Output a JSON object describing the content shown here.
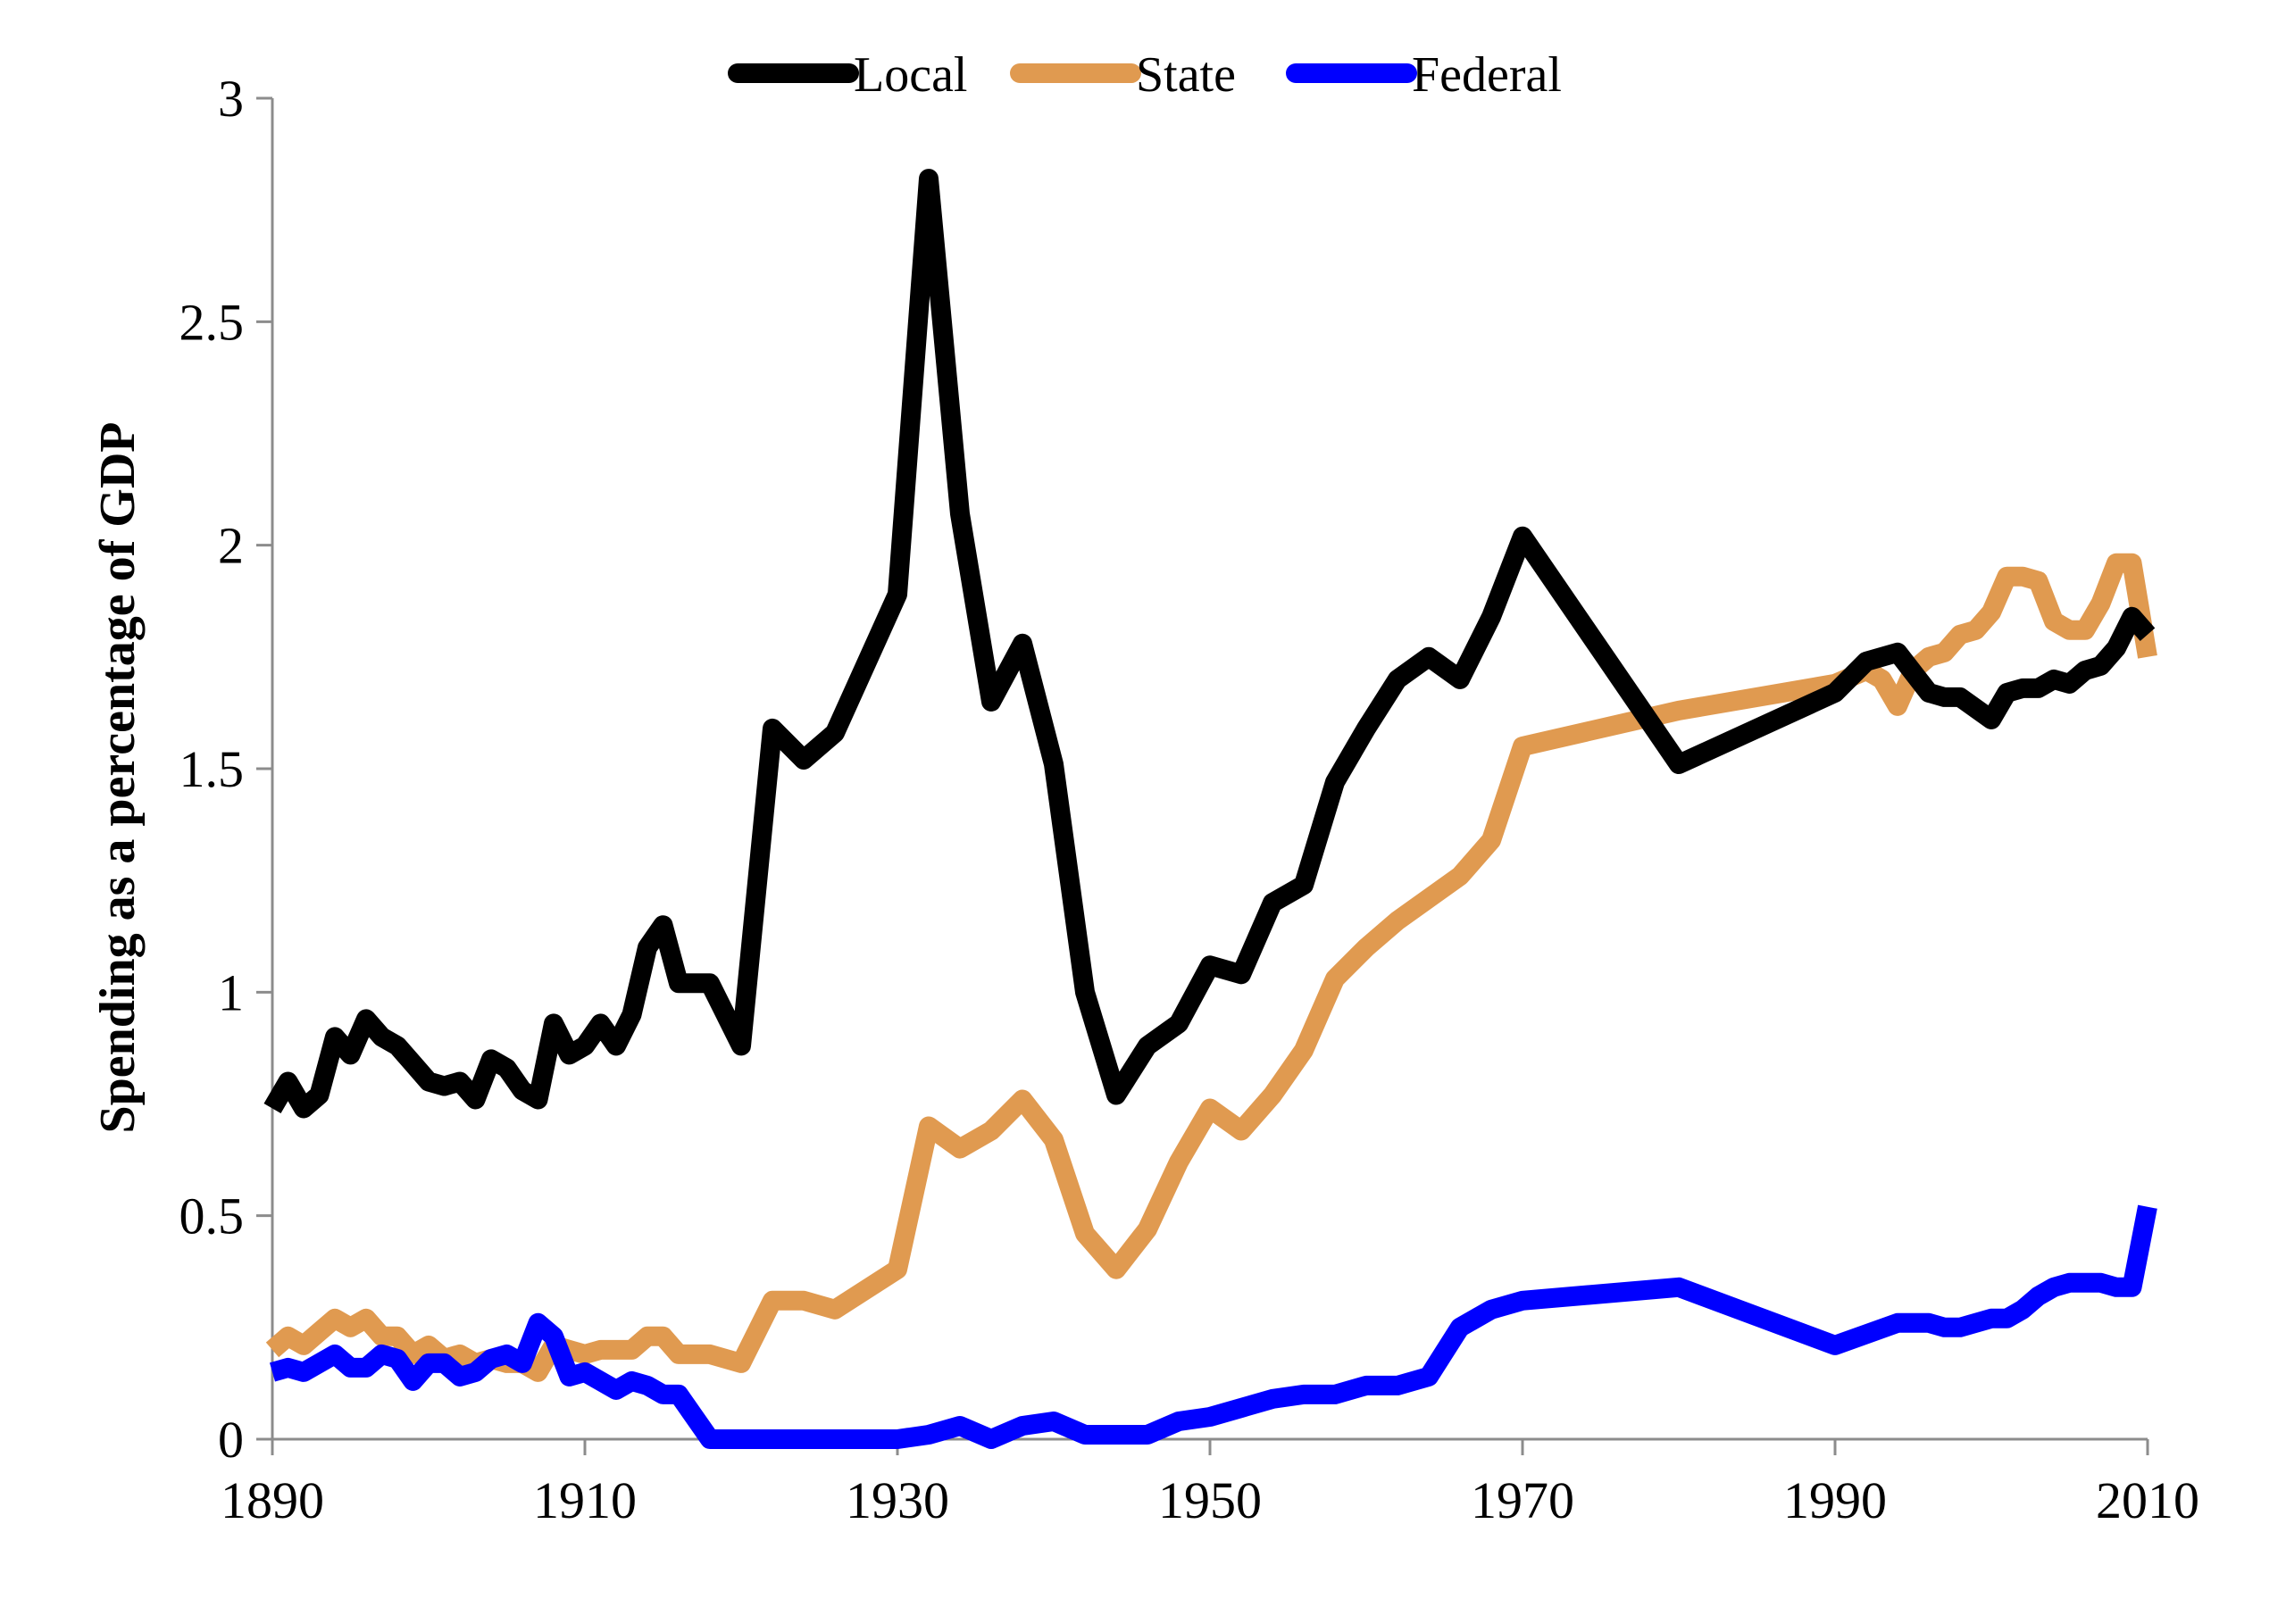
{
  "chart_data": {
    "type": "line",
    "title": "",
    "xlabel": "",
    "ylabel": "Spending as a percentage of GDP",
    "xlim": [
      1890,
      2010
    ],
    "ylim": [
      0,
      3
    ],
    "x_ticks": [
      "1890",
      "1910",
      "1930",
      "1950",
      "1970",
      "1990",
      "2010"
    ],
    "y_ticks": [
      "0",
      "0.5",
      "1",
      "1.5",
      "2",
      "2.5",
      "3"
    ],
    "grid": false,
    "legend_position": "top-center",
    "series": [
      {
        "name": "Local",
        "color": "#000000",
        "points": [
          [
            1890,
            0.74
          ],
          [
            1891,
            0.8
          ],
          [
            1892,
            0.74
          ],
          [
            1893,
            0.77
          ],
          [
            1894,
            0.9
          ],
          [
            1895,
            0.86
          ],
          [
            1896,
            0.94
          ],
          [
            1897,
            0.9
          ],
          [
            1898,
            0.88
          ],
          [
            1899,
            0.84
          ],
          [
            1900,
            0.8
          ],
          [
            1901,
            0.79
          ],
          [
            1902,
            0.8
          ],
          [
            1903,
            0.76
          ],
          [
            1904,
            0.85
          ],
          [
            1905,
            0.83
          ],
          [
            1906,
            0.78
          ],
          [
            1907,
            0.76
          ],
          [
            1908,
            0.93
          ],
          [
            1909,
            0.86
          ],
          [
            1910,
            0.88
          ],
          [
            1911,
            0.93
          ],
          [
            1912,
            0.88
          ],
          [
            1913,
            0.95
          ],
          [
            1914,
            1.1
          ],
          [
            1915,
            1.15
          ],
          [
            1916,
            1.02
          ],
          [
            1917,
            1.02
          ],
          [
            1918,
            1.02
          ],
          [
            1919,
            0.95
          ],
          [
            1920,
            0.88
          ],
          [
            1922,
            1.59
          ],
          [
            1924,
            1.52
          ],
          [
            1926,
            1.58
          ],
          [
            1930,
            1.89
          ],
          [
            1932,
            2.82
          ],
          [
            1934,
            2.07
          ],
          [
            1936,
            1.65
          ],
          [
            1938,
            1.78
          ],
          [
            1940,
            1.51
          ],
          [
            1942,
            1.0
          ],
          [
            1944,
            0.77
          ],
          [
            1946,
            0.88
          ],
          [
            1948,
            0.93
          ],
          [
            1950,
            1.06
          ],
          [
            1952,
            1.04
          ],
          [
            1954,
            1.2
          ],
          [
            1956,
            1.24
          ],
          [
            1958,
            1.47
          ],
          [
            1960,
            1.59
          ],
          [
            1962,
            1.7
          ],
          [
            1964,
            1.75
          ],
          [
            1966,
            1.7
          ],
          [
            1968,
            1.84
          ],
          [
            1970,
            2.02
          ],
          [
            1980,
            1.51
          ],
          [
            1990,
            1.67
          ],
          [
            1992,
            1.74
          ],
          [
            1994,
            1.76
          ],
          [
            1996,
            1.67
          ],
          [
            1997,
            1.66
          ],
          [
            1998,
            1.66
          ],
          [
            2000,
            1.61
          ],
          [
            2001,
            1.67
          ],
          [
            2002,
            1.68
          ],
          [
            2003,
            1.68
          ],
          [
            2004,
            1.7
          ],
          [
            2005,
            1.69
          ],
          [
            2006,
            1.72
          ],
          [
            2007,
            1.73
          ],
          [
            2008,
            1.77
          ],
          [
            2009,
            1.84
          ],
          [
            2010,
            1.8
          ]
        ]
      },
      {
        "name": "State",
        "color": "#E09A50",
        "points": [
          [
            1890,
            0.2
          ],
          [
            1891,
            0.23
          ],
          [
            1892,
            0.21
          ],
          [
            1893,
            0.24
          ],
          [
            1894,
            0.27
          ],
          [
            1895,
            0.25
          ],
          [
            1896,
            0.27
          ],
          [
            1897,
            0.23
          ],
          [
            1898,
            0.23
          ],
          [
            1899,
            0.19
          ],
          [
            1900,
            0.21
          ],
          [
            1901,
            0.18
          ],
          [
            1902,
            0.19
          ],
          [
            1903,
            0.17
          ],
          [
            1904,
            0.18
          ],
          [
            1905,
            0.17
          ],
          [
            1906,
            0.17
          ],
          [
            1907,
            0.15
          ],
          [
            1908,
            0.21
          ],
          [
            1909,
            0.2
          ],
          [
            1910,
            0.19
          ],
          [
            1911,
            0.2
          ],
          [
            1912,
            0.2
          ],
          [
            1913,
            0.2
          ],
          [
            1914,
            0.23
          ],
          [
            1915,
            0.23
          ],
          [
            1916,
            0.19
          ],
          [
            1917,
            0.19
          ],
          [
            1918,
            0.19
          ],
          [
            1920,
            0.17
          ],
          [
            1922,
            0.31
          ],
          [
            1924,
            0.31
          ],
          [
            1926,
            0.29
          ],
          [
            1930,
            0.38
          ],
          [
            1932,
            0.7
          ],
          [
            1934,
            0.65
          ],
          [
            1936,
            0.69
          ],
          [
            1938,
            0.76
          ],
          [
            1940,
            0.67
          ],
          [
            1942,
            0.46
          ],
          [
            1944,
            0.38
          ],
          [
            1946,
            0.47
          ],
          [
            1948,
            0.62
          ],
          [
            1950,
            0.74
          ],
          [
            1952,
            0.69
          ],
          [
            1954,
            0.77
          ],
          [
            1956,
            0.87
          ],
          [
            1958,
            1.03
          ],
          [
            1960,
            1.1
          ],
          [
            1962,
            1.16
          ],
          [
            1964,
            1.21
          ],
          [
            1966,
            1.26
          ],
          [
            1968,
            1.34
          ],
          [
            1970,
            1.55
          ],
          [
            1980,
            1.63
          ],
          [
            1990,
            1.69
          ],
          [
            1992,
            1.72
          ],
          [
            1993,
            1.7
          ],
          [
            1994,
            1.64
          ],
          [
            1995,
            1.72
          ],
          [
            1996,
            1.75
          ],
          [
            1997,
            1.76
          ],
          [
            1998,
            1.8
          ],
          [
            1999,
            1.81
          ],
          [
            2000,
            1.85
          ],
          [
            2001,
            1.93
          ],
          [
            2002,
            1.93
          ],
          [
            2003,
            1.92
          ],
          [
            2004,
            1.83
          ],
          [
            2005,
            1.81
          ],
          [
            2006,
            1.81
          ],
          [
            2007,
            1.87
          ],
          [
            2008,
            1.96
          ],
          [
            2009,
            1.96
          ],
          [
            2010,
            1.75
          ]
        ]
      },
      {
        "name": "Federal",
        "color": "#0000FF",
        "points": [
          [
            1890,
            0.15
          ],
          [
            1891,
            0.16
          ],
          [
            1892,
            0.15
          ],
          [
            1893,
            0.17
          ],
          [
            1894,
            0.19
          ],
          [
            1895,
            0.16
          ],
          [
            1896,
            0.16
          ],
          [
            1897,
            0.19
          ],
          [
            1898,
            0.18
          ],
          [
            1899,
            0.13
          ],
          [
            1900,
            0.17
          ],
          [
            1901,
            0.17
          ],
          [
            1902,
            0.14
          ],
          [
            1903,
            0.15
          ],
          [
            1904,
            0.18
          ],
          [
            1905,
            0.19
          ],
          [
            1906,
            0.17
          ],
          [
            1907,
            0.26
          ],
          [
            1908,
            0.23
          ],
          [
            1909,
            0.14
          ],
          [
            1910,
            0.15
          ],
          [
            1911,
            0.13
          ],
          [
            1912,
            0.11
          ],
          [
            1913,
            0.13
          ],
          [
            1914,
            0.12
          ],
          [
            1915,
            0.1
          ],
          [
            1916,
            0.1
          ],
          [
            1918,
            0.0
          ],
          [
            1920,
            0.0
          ],
          [
            1925,
            0.0
          ],
          [
            1930,
            0.0
          ],
          [
            1932,
            0.01
          ],
          [
            1934,
            0.03
          ],
          [
            1936,
            0.0
          ],
          [
            1938,
            0.03
          ],
          [
            1940,
            0.04
          ],
          [
            1942,
            0.01
          ],
          [
            1944,
            0.01
          ],
          [
            1946,
            0.01
          ],
          [
            1948,
            0.04
          ],
          [
            1950,
            0.05
          ],
          [
            1952,
            0.07
          ],
          [
            1954,
            0.09
          ],
          [
            1956,
            0.1
          ],
          [
            1958,
            0.1
          ],
          [
            1960,
            0.12
          ],
          [
            1962,
            0.12
          ],
          [
            1964,
            0.14
          ],
          [
            1966,
            0.25
          ],
          [
            1968,
            0.29
          ],
          [
            1970,
            0.31
          ],
          [
            1980,
            0.34
          ],
          [
            1990,
            0.21
          ],
          [
            1994,
            0.26
          ],
          [
            1996,
            0.26
          ],
          [
            1997,
            0.25
          ],
          [
            1998,
            0.25
          ],
          [
            2000,
            0.27
          ],
          [
            2001,
            0.27
          ],
          [
            2002,
            0.29
          ],
          [
            2003,
            0.32
          ],
          [
            2004,
            0.34
          ],
          [
            2005,
            0.35
          ],
          [
            2006,
            0.35
          ],
          [
            2007,
            0.35
          ],
          [
            2008,
            0.34
          ],
          [
            2009,
            0.34
          ],
          [
            2010,
            0.52
          ]
        ]
      }
    ]
  }
}
